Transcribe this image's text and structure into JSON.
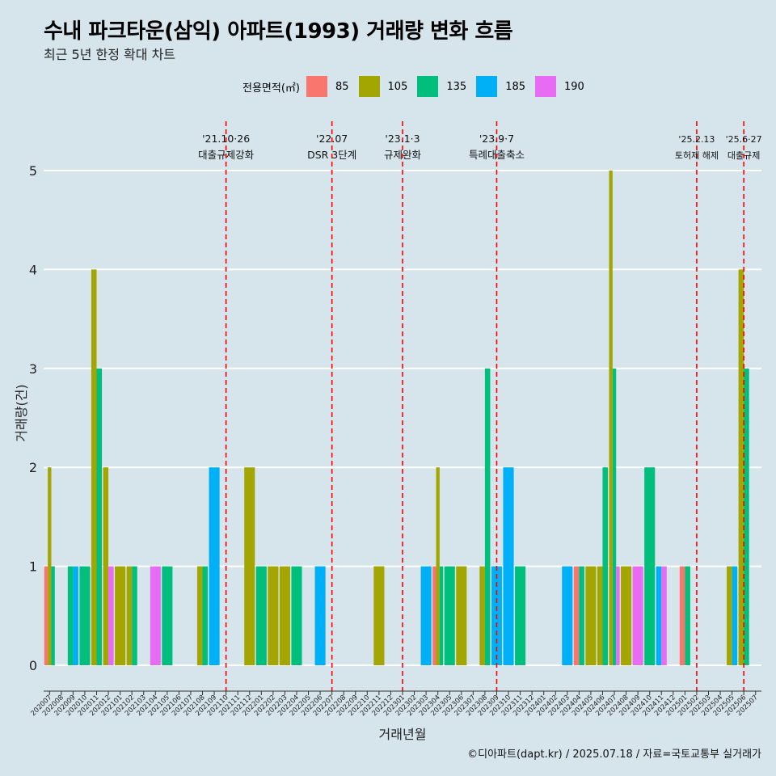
{
  "title": "수내 파크타운(삼익) 아파트(1993) 거래량 변화 흐름",
  "subtitle": "최근 5년 한정 확대 차트",
  "legend": {
    "title": "전용면적(㎡)",
    "items": [
      {
        "label": "85",
        "color": "#f8766d"
      },
      {
        "label": "105",
        "color": "#a3a500"
      },
      {
        "label": "135",
        "color": "#00bf7d"
      },
      {
        "label": "185",
        "color": "#00b0f6"
      },
      {
        "label": "190",
        "color": "#e76bf3"
      }
    ]
  },
  "footer": "©디아파트(dapt.kr) / 2025.07.18 / 자료=국토교통부 실거래가",
  "chart_data": {
    "type": "bar",
    "xlabel": "거래년월",
    "ylabel": "거래량(건)",
    "ylim": [
      -0.2,
      5.5
    ],
    "yticks": [
      0,
      1,
      2,
      3,
      4,
      5
    ],
    "categories": [
      "202007",
      "202008",
      "202009",
      "202010",
      "202011",
      "202012",
      "202101",
      "202102",
      "202103",
      "202104",
      "202105",
      "202106",
      "202107",
      "202108",
      "202109",
      "202110",
      "202111",
      "202112",
      "202201",
      "202202",
      "202203",
      "202204",
      "202205",
      "202206",
      "202207",
      "202208",
      "202209",
      "202210",
      "202211",
      "202212",
      "202301",
      "202302",
      "202303",
      "202304",
      "202305",
      "202306",
      "202307",
      "202308",
      "202309",
      "202310",
      "202311",
      "202312",
      "202401",
      "202402",
      "202403",
      "202404",
      "202405",
      "202406",
      "202407",
      "202408",
      "202409",
      "202410",
      "202411",
      "202412",
      "202501",
      "202502",
      "202503",
      "202504",
      "202505",
      "202506",
      "202507"
    ],
    "series": [
      {
        "name": "85",
        "values": [
          1,
          0,
          0,
          0,
          0,
          0,
          0,
          0,
          0,
          0,
          0,
          0,
          0,
          0,
          0,
          0,
          0,
          0,
          0,
          0,
          0,
          0,
          0,
          0,
          0,
          0,
          0,
          0,
          0,
          0,
          0,
          0,
          0,
          1,
          0,
          0,
          0,
          0,
          0,
          0,
          0,
          0,
          0,
          0,
          0,
          1,
          0,
          0,
          0,
          0,
          0,
          0,
          0,
          0,
          1,
          0,
          0,
          0,
          0,
          0,
          0
        ]
      },
      {
        "name": "105",
        "values": [
          2,
          0,
          0,
          0,
          4,
          2,
          1,
          1,
          0,
          0,
          0,
          0,
          0,
          1,
          0,
          0,
          0,
          2,
          0,
          1,
          1,
          0,
          0,
          0,
          0,
          0,
          0,
          0,
          1,
          0,
          0,
          0,
          0,
          2,
          0,
          1,
          0,
          1,
          0,
          0,
          0,
          0,
          0,
          0,
          0,
          0,
          1,
          1,
          5,
          1,
          0,
          0,
          0,
          0,
          0,
          0,
          0,
          0,
          1,
          4,
          0
        ]
      },
      {
        "name": "135",
        "values": [
          1,
          0,
          1,
          1,
          3,
          0,
          0,
          1,
          0,
          0,
          1,
          0,
          0,
          1,
          0,
          0,
          0,
          0,
          1,
          0,
          0,
          1,
          0,
          0,
          0,
          0,
          0,
          0,
          0,
          0,
          0,
          0,
          0,
          1,
          1,
          0,
          0,
          3,
          0,
          0,
          1,
          0,
          0,
          0,
          0,
          1,
          0,
          2,
          3,
          0,
          0,
          2,
          0,
          0,
          1,
          0,
          0,
          0,
          0,
          3,
          0
        ]
      },
      {
        "name": "185",
        "values": [
          0,
          0,
          1,
          0,
          0,
          0,
          0,
          0,
          0,
          0,
          0,
          0,
          0,
          0,
          2,
          0,
          0,
          0,
          0,
          0,
          0,
          0,
          0,
          1,
          0,
          0,
          0,
          0,
          0,
          0,
          0,
          0,
          1,
          0,
          0,
          0,
          0,
          0,
          1,
          2,
          0,
          0,
          0,
          0,
          1,
          0,
          0,
          0,
          0,
          0,
          0,
          0,
          1,
          0,
          0,
          0,
          0,
          0,
          1,
          0,
          0
        ]
      },
      {
        "name": "190",
        "values": [
          0,
          0,
          0,
          0,
          0,
          1,
          0,
          0,
          0,
          1,
          0,
          0,
          0,
          0,
          0,
          0,
          0,
          0,
          0,
          0,
          0,
          0,
          0,
          0,
          0,
          0,
          0,
          0,
          0,
          0,
          0,
          0,
          0,
          0,
          0,
          0,
          0,
          0,
          0,
          0,
          0,
          0,
          0,
          0,
          0,
          0,
          0,
          0,
          1,
          0,
          1,
          0,
          1,
          0,
          0,
          0,
          0,
          0,
          0,
          0,
          0
        ]
      }
    ],
    "annotations": [
      {
        "x": "202110",
        "date": "'21.10·26",
        "text": "대출규제강화"
      },
      {
        "x": "202207",
        "date": "'22.07",
        "text": "DSR 3단계"
      },
      {
        "x": "202301",
        "date": "'23.1·3",
        "text": "규제완화"
      },
      {
        "x": "202309",
        "date": "'23.9·7",
        "text": "특례대출축소"
      },
      {
        "x": "202502",
        "date": "'25.2.13",
        "text": "토허제 해제"
      },
      {
        "x": "202506",
        "date": "'25.6·27",
        "text": "대출규제"
      }
    ]
  }
}
